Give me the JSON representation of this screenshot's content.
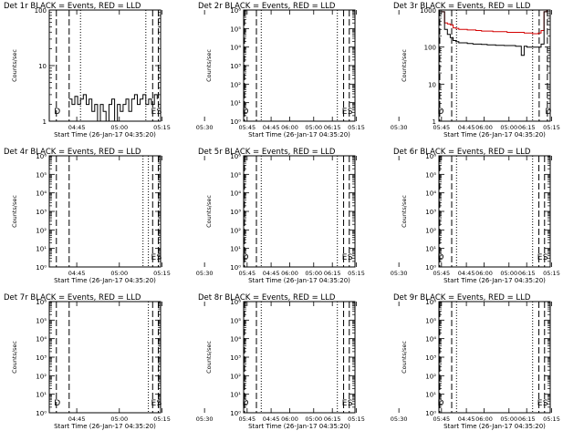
{
  "figure": {
    "xlabel": "Start Time (26-Jan-17 04:35:20)",
    "ylabel": "Counts/sec",
    "x_ticks": [
      "04:45",
      "05:00",
      "05:15",
      "05:30",
      "05:45",
      "06:00",
      "06:15"
    ],
    "colors": {
      "events": "#000000",
      "lld": "#d40000",
      "axis": "#000000",
      "background": "#ffffff"
    }
  },
  "chart_data": [
    {
      "type": "line",
      "title": "Det 1r BLACK = Events, RED = LLD",
      "ytype": "log",
      "ylim": [
        1,
        100
      ],
      "y_ticks": [
        {
          "v": 1,
          "label": "1"
        },
        {
          "v": 10,
          "label": "10"
        },
        {
          "v": 100,
          "label": "100"
        }
      ],
      "xlim_min": [
        0,
        39.2
      ],
      "x_ticks_min": [
        9.67,
        24.67,
        39.67,
        54.67,
        69.67,
        84.67,
        99.67
      ],
      "markers": [
        {
          "x": 2.5,
          "style": "dashed",
          "label": "D"
        },
        {
          "x": 7.0,
          "style": "dashed",
          "label": ""
        },
        {
          "x": 11.0,
          "style": "dotted",
          "label": ""
        },
        {
          "x": 34.0,
          "style": "dotted",
          "label": ""
        },
        {
          "x": 36.4,
          "style": "dashed",
          "label": "E"
        },
        {
          "x": 38.4,
          "style": "dashed",
          "label": "S"
        }
      ],
      "series": [
        {
          "kind": "events",
          "x": [
            7,
            8,
            9,
            10,
            11,
            12,
            13,
            14,
            15,
            16,
            17,
            18,
            19,
            20,
            21,
            22,
            23,
            24,
            25,
            26,
            27,
            28,
            29,
            30,
            31,
            32,
            33,
            34,
            35,
            36,
            37,
            38
          ],
          "y": [
            2.5,
            2,
            2.8,
            2,
            2.5,
            3,
            2,
            2.5,
            1.5,
            2,
            1,
            2,
            1.5,
            1,
            2,
            2.5,
            1,
            2,
            1.5,
            2,
            2.5,
            1.5,
            2.5,
            3,
            2,
            2.5,
            3,
            2,
            2.5,
            2,
            3,
            2.5
          ]
        }
      ]
    },
    {
      "type": "line",
      "title": "Det 2r BLACK = Events, RED = LLD",
      "ytype": "log",
      "ylim": [
        1,
        1000000
      ],
      "y_ticks": [
        {
          "v": 1,
          "label": "10⁰"
        },
        {
          "v": 10,
          "label": "10¹"
        },
        {
          "v": 100,
          "label": "10²"
        },
        {
          "v": 1000,
          "label": "10³"
        },
        {
          "v": 10000,
          "label": "10⁴"
        },
        {
          "v": 100000,
          "label": "10⁵"
        },
        {
          "v": 1000000,
          "label": "10⁶"
        }
      ],
      "xlim_min": [
        0,
        39.2
      ],
      "x_ticks_min": [
        9.67,
        24.67,
        39.67,
        54.67,
        69.67,
        84.67,
        99.67
      ],
      "markers": [
        {
          "x": 0.3,
          "style": "dashed",
          "label": "D"
        },
        {
          "x": 4.5,
          "style": "dashed",
          "label": ""
        },
        {
          "x": 6.2,
          "style": "dotted",
          "label": ""
        },
        {
          "x": 33.0,
          "style": "dotted",
          "label": ""
        },
        {
          "x": 35.2,
          "style": "dashed",
          "label": "E"
        },
        {
          "x": 37.2,
          "style": "dashed",
          "label": "S"
        }
      ],
      "series": []
    },
    {
      "type": "line",
      "title": "Det 3r BLACK = Events, RED = LLD",
      "ytype": "log",
      "ylim": [
        1,
        1000
      ],
      "y_ticks": [
        {
          "v": 1,
          "label": "1"
        },
        {
          "v": 10,
          "label": "10"
        },
        {
          "v": 100,
          "label": "100"
        },
        {
          "v": 1000,
          "label": "1000"
        }
      ],
      "xlim_min": [
        0,
        39.2
      ],
      "x_ticks_min": [
        9.67,
        24.67,
        39.67,
        54.67,
        69.67,
        84.67,
        99.67
      ],
      "markers": [
        {
          "x": 0.3,
          "style": "dashed",
          "label": "D"
        },
        {
          "x": 4.5,
          "style": "dashed",
          "label": ""
        },
        {
          "x": 6.2,
          "style": "dotted",
          "label": ""
        },
        {
          "x": 33.0,
          "style": "dotted",
          "label": ""
        },
        {
          "x": 35.3,
          "style": "dashed",
          "label": ""
        },
        {
          "x": 38.2,
          "style": "dashed",
          "label": "D"
        }
      ],
      "series": [
        {
          "kind": "lld",
          "x": [
            1,
            2,
            3,
            4,
            5,
            6,
            7,
            8,
            9,
            10,
            11,
            12,
            13,
            14,
            15,
            16,
            17,
            18,
            19,
            20,
            21,
            22,
            23,
            24,
            25,
            26,
            27,
            28,
            29,
            30,
            31,
            32,
            33,
            34,
            35,
            36,
            37,
            38
          ],
          "y": [
            900,
            450,
            420,
            400,
            330,
            320,
            300,
            300,
            300,
            290,
            290,
            290,
            280,
            280,
            270,
            270,
            270,
            270,
            260,
            260,
            260,
            260,
            260,
            250,
            250,
            250,
            250,
            250,
            250,
            240,
            240,
            240,
            230,
            230,
            240,
            280,
            900,
            1000
          ]
        },
        {
          "kind": "events",
          "x": [
            1,
            2,
            3,
            4,
            5,
            6,
            7,
            8,
            9,
            10,
            11,
            12,
            13,
            14,
            15,
            16,
            17,
            18,
            19,
            20,
            21,
            22,
            23,
            24,
            25,
            26,
            27,
            28,
            29,
            30,
            31,
            32,
            33,
            34,
            35,
            36,
            37,
            38
          ],
          "y": [
            900,
            300,
            220,
            180,
            150,
            140,
            130,
            130,
            130,
            125,
            125,
            120,
            120,
            120,
            118,
            118,
            115,
            115,
            115,
            112,
            112,
            112,
            110,
            110,
            110,
            110,
            105,
            105,
            60,
            105,
            100,
            100,
            100,
            100,
            100,
            120,
            900,
            1000
          ]
        }
      ]
    },
    {
      "type": "line",
      "title": "Det 4r BLACK = Events, RED = LLD",
      "ytype": "log",
      "ylim": [
        1,
        1000000
      ],
      "y_ticks": [
        {
          "v": 1,
          "label": "10⁰"
        },
        {
          "v": 10,
          "label": "10¹"
        },
        {
          "v": 100,
          "label": "10²"
        },
        {
          "v": 1000,
          "label": "10³"
        },
        {
          "v": 10000,
          "label": "10⁴"
        },
        {
          "v": 100000,
          "label": "10⁵"
        },
        {
          "v": 1000000,
          "label": "10⁶"
        }
      ],
      "xlim_min": [
        0,
        39.2
      ],
      "x_ticks_min": [
        9.67,
        24.67,
        39.67,
        54.67,
        69.67,
        84.67,
        99.67
      ],
      "markers": [
        {
          "x": 2.5,
          "style": "dashed",
          "label": ""
        },
        {
          "x": 7.0,
          "style": "dashed",
          "label": ""
        },
        {
          "x": 33.0,
          "style": "dotted",
          "label": ""
        },
        {
          "x": 34.9,
          "style": "dotted",
          "label": ""
        },
        {
          "x": 36.4,
          "style": "dashed",
          "label": "E"
        },
        {
          "x": 38.4,
          "style": "dashed",
          "label": "S"
        }
      ],
      "series": []
    },
    {
      "type": "line",
      "title": "Det 5r BLACK = Events, RED = LLD",
      "ytype": "log",
      "ylim": [
        1,
        1000000
      ],
      "y_ticks": [
        {
          "v": 1,
          "label": "10⁰"
        },
        {
          "v": 10,
          "label": "10¹"
        },
        {
          "v": 100,
          "label": "10²"
        },
        {
          "v": 1000,
          "label": "10³"
        },
        {
          "v": 10000,
          "label": "10⁴"
        },
        {
          "v": 100000,
          "label": "10⁵"
        },
        {
          "v": 1000000,
          "label": "10⁶"
        }
      ],
      "xlim_min": [
        0,
        39.2
      ],
      "x_ticks_min": [
        9.67,
        24.67,
        39.67,
        54.67,
        69.67,
        84.67,
        99.67
      ],
      "markers": [
        {
          "x": 0.3,
          "style": "dashed",
          "label": "D"
        },
        {
          "x": 4.5,
          "style": "dashed",
          "label": ""
        },
        {
          "x": 6.2,
          "style": "dotted",
          "label": ""
        },
        {
          "x": 33.0,
          "style": "dotted",
          "label": ""
        },
        {
          "x": 35.2,
          "style": "dashed",
          "label": "E"
        },
        {
          "x": 37.2,
          "style": "dashed",
          "label": "S"
        }
      ],
      "series": []
    },
    {
      "type": "line",
      "title": "Det 6r BLACK = Events, RED = LLD",
      "ytype": "log",
      "ylim": [
        1,
        1000000
      ],
      "y_ticks": [
        {
          "v": 1,
          "label": "10⁰"
        },
        {
          "v": 10,
          "label": "10¹"
        },
        {
          "v": 100,
          "label": "10²"
        },
        {
          "v": 1000,
          "label": "10³"
        },
        {
          "v": 10000,
          "label": "10⁴"
        },
        {
          "v": 100000,
          "label": "10⁵"
        },
        {
          "v": 1000000,
          "label": "10⁶"
        }
      ],
      "xlim_min": [
        0,
        39.2
      ],
      "x_ticks_min": [
        9.67,
        24.67,
        39.67,
        54.67,
        69.67,
        84.67,
        99.67
      ],
      "markers": [
        {
          "x": 0.3,
          "style": "dashed",
          "label": "D"
        },
        {
          "x": 4.5,
          "style": "dashed",
          "label": ""
        },
        {
          "x": 6.2,
          "style": "dotted",
          "label": ""
        },
        {
          "x": 33.0,
          "style": "dotted",
          "label": ""
        },
        {
          "x": 35.2,
          "style": "dashed",
          "label": "E"
        },
        {
          "x": 37.2,
          "style": "dashed",
          "label": "S"
        }
      ],
      "series": []
    },
    {
      "type": "line",
      "title": "Det 7r BLACK = Events, RED = LLD",
      "ytype": "log",
      "ylim": [
        1,
        1000000
      ],
      "y_ticks": [
        {
          "v": 1,
          "label": "10⁰"
        },
        {
          "v": 10,
          "label": "10¹"
        },
        {
          "v": 100,
          "label": "10²"
        },
        {
          "v": 1000,
          "label": "10³"
        },
        {
          "v": 10000,
          "label": "10⁴"
        },
        {
          "v": 100000,
          "label": "10⁵"
        },
        {
          "v": 1000000,
          "label": "10⁶"
        }
      ],
      "xlim_min": [
        0,
        39.2
      ],
      "x_ticks_min": [
        9.67,
        24.67,
        39.67,
        54.67,
        69.67,
        84.67,
        99.67
      ],
      "markers": [
        {
          "x": 2.5,
          "style": "dashed",
          "label": "D"
        },
        {
          "x": 7.0,
          "style": "dashed",
          "label": ""
        },
        {
          "x": 34.9,
          "style": "dotted",
          "label": ""
        },
        {
          "x": 36.4,
          "style": "dashed",
          "label": "E"
        },
        {
          "x": 38.4,
          "style": "dashed",
          "label": "S"
        }
      ],
      "series": []
    },
    {
      "type": "line",
      "title": "Det 8r BLACK = Events, RED = LLD",
      "ytype": "log",
      "ylim": [
        1,
        1000000
      ],
      "y_ticks": [
        {
          "v": 1,
          "label": "10⁰"
        },
        {
          "v": 10,
          "label": "10¹"
        },
        {
          "v": 100,
          "label": "10²"
        },
        {
          "v": 1000,
          "label": "10³"
        },
        {
          "v": 10000,
          "label": "10⁴"
        },
        {
          "v": 100000,
          "label": "10⁵"
        },
        {
          "v": 1000000,
          "label": "10⁶"
        }
      ],
      "xlim_min": [
        0,
        39.2
      ],
      "x_ticks_min": [
        9.67,
        24.67,
        39.67,
        54.67,
        69.67,
        84.67,
        99.67
      ],
      "markers": [
        {
          "x": 0.3,
          "style": "dashed",
          "label": "D"
        },
        {
          "x": 4.5,
          "style": "dashed",
          "label": ""
        },
        {
          "x": 6.2,
          "style": "dotted",
          "label": ""
        },
        {
          "x": 33.0,
          "style": "dotted",
          "label": ""
        },
        {
          "x": 35.2,
          "style": "dashed",
          "label": "E"
        },
        {
          "x": 37.2,
          "style": "dashed",
          "label": "S"
        }
      ],
      "series": []
    },
    {
      "type": "line",
      "title": "Det 9r BLACK = Events, RED = LLD",
      "ytype": "log",
      "ylim": [
        1,
        1000000
      ],
      "y_ticks": [
        {
          "v": 1,
          "label": "10⁰"
        },
        {
          "v": 10,
          "label": "10¹"
        },
        {
          "v": 100,
          "label": "10²"
        },
        {
          "v": 1000,
          "label": "10³"
        },
        {
          "v": 10000,
          "label": "10⁴"
        },
        {
          "v": 100000,
          "label": "10⁵"
        },
        {
          "v": 1000000,
          "label": "10⁶"
        }
      ],
      "xlim_min": [
        0,
        39.2
      ],
      "x_ticks_min": [
        9.67,
        24.67,
        39.67,
        54.67,
        69.67,
        84.67,
        99.67
      ],
      "markers": [
        {
          "x": 0.3,
          "style": "dashed",
          "label": "D"
        },
        {
          "x": 4.5,
          "style": "dashed",
          "label": ""
        },
        {
          "x": 6.2,
          "style": "dotted",
          "label": ""
        },
        {
          "x": 33.0,
          "style": "dotted",
          "label": ""
        },
        {
          "x": 35.2,
          "style": "dashed",
          "label": "E"
        },
        {
          "x": 37.2,
          "style": "dashed",
          "label": "S"
        }
      ],
      "series": []
    }
  ]
}
